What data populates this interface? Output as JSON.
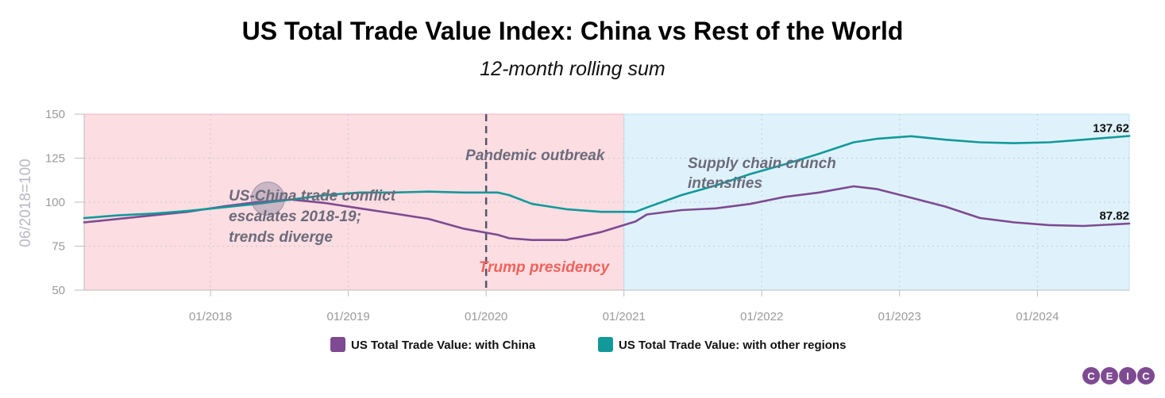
{
  "colors": {
    "china": "#7e4a91",
    "other": "#12999a",
    "title": "#8a4a94",
    "pre_band": "#fcdde2",
    "post_band": "#dff2fb",
    "trump_text": "#f0625a"
  },
  "logo": {
    "letters": [
      "C",
      "E",
      "I",
      "C"
    ],
    "color": "#7e4a91"
  },
  "chart_data": {
    "type": "line",
    "title": "US Total Trade Value Index: China vs Rest of the World",
    "subtitle": "12-month rolling sum",
    "ylabel": "06/2018=100",
    "ylim": [
      50,
      150
    ],
    "yticks": [
      50,
      75,
      100,
      125,
      150
    ],
    "xlim": [
      "2017-02",
      "2024-09"
    ],
    "xticks": [
      "01/2018",
      "01/2019",
      "01/2020",
      "01/2021",
      "01/2022",
      "01/2023",
      "01/2024"
    ],
    "grid": true,
    "legend_position": "bottom",
    "bands": [
      {
        "from": "2017-02",
        "to": "2021-01",
        "label": "Trump presidency"
      },
      {
        "from": "2021-01",
        "to": "2024-09",
        "label": ""
      }
    ],
    "vlines": [
      {
        "x": "2020-01",
        "label": "Pandemic outbreak",
        "style": "dashed"
      }
    ],
    "annotations": [
      {
        "text": "US-China trade conflict escalates 2018-19; trends diverge",
        "lines": [
          "US-China trade conflict",
          "escalates 2018-19;",
          "trends diverge"
        ],
        "marker_x": "2018-06",
        "marker_y": 102
      },
      {
        "text": "Supply chain crunch intensifies",
        "lines": [
          "Supply chain crunch",
          "intensifies"
        ]
      }
    ],
    "series": [
      {
        "name": "US Total Trade Value: with China",
        "end_label": "87.82",
        "points": [
          [
            "2017-02",
            88.5
          ],
          [
            "2017-05",
            90.5
          ],
          [
            "2017-08",
            92.5
          ],
          [
            "2017-11",
            94.5
          ],
          [
            "2018-02",
            97.5
          ],
          [
            "2018-05",
            100.0
          ],
          [
            "2018-08",
            101.5
          ],
          [
            "2018-11",
            99.5
          ],
          [
            "2019-02",
            96.5
          ],
          [
            "2019-05",
            93.5
          ],
          [
            "2019-08",
            90.5
          ],
          [
            "2019-11",
            85.0
          ],
          [
            "2020-02",
            81.5
          ],
          [
            "2020-03",
            79.5
          ],
          [
            "2020-05",
            78.5
          ],
          [
            "2020-08",
            78.5
          ],
          [
            "2020-11",
            83.0
          ],
          [
            "2021-02",
            89.0
          ],
          [
            "2021-03",
            93.0
          ],
          [
            "2021-06",
            95.5
          ],
          [
            "2021-09",
            96.5
          ],
          [
            "2021-12",
            99.0
          ],
          [
            "2022-03",
            103.0
          ],
          [
            "2022-06",
            105.5
          ],
          [
            "2022-09",
            109.0
          ],
          [
            "2022-11",
            107.5
          ],
          [
            "2023-02",
            102.5
          ],
          [
            "2023-05",
            97.5
          ],
          [
            "2023-08",
            91.0
          ],
          [
            "2023-11",
            88.5
          ],
          [
            "2024-02",
            87.0
          ],
          [
            "2024-05",
            86.5
          ],
          [
            "2024-09",
            87.82
          ]
        ]
      },
      {
        "name": "US Total Trade Value: with other regions",
        "end_label": "137.62",
        "points": [
          [
            "2017-02",
            91.0
          ],
          [
            "2017-05",
            92.5
          ],
          [
            "2017-08",
            93.5
          ],
          [
            "2017-11",
            95.0
          ],
          [
            "2018-02",
            97.0
          ],
          [
            "2018-05",
            99.0
          ],
          [
            "2018-08",
            101.5
          ],
          [
            "2018-11",
            104.0
          ],
          [
            "2019-02",
            105.5
          ],
          [
            "2019-05",
            105.5
          ],
          [
            "2019-08",
            106.0
          ],
          [
            "2019-11",
            105.5
          ],
          [
            "2020-02",
            105.5
          ],
          [
            "2020-03",
            104.0
          ],
          [
            "2020-05",
            99.0
          ],
          [
            "2020-08",
            96.0
          ],
          [
            "2020-11",
            94.5
          ],
          [
            "2021-02",
            94.5
          ],
          [
            "2021-03",
            97.0
          ],
          [
            "2021-06",
            104.0
          ],
          [
            "2021-09",
            109.5
          ],
          [
            "2021-12",
            116.0
          ],
          [
            "2022-03",
            121.5
          ],
          [
            "2022-06",
            127.5
          ],
          [
            "2022-09",
            134.0
          ],
          [
            "2022-11",
            136.0
          ],
          [
            "2023-02",
            137.5
          ],
          [
            "2023-05",
            135.5
          ],
          [
            "2023-08",
            134.0
          ],
          [
            "2023-11",
            133.5
          ],
          [
            "2024-02",
            134.0
          ],
          [
            "2024-05",
            135.5
          ],
          [
            "2024-09",
            137.62
          ]
        ]
      }
    ]
  }
}
